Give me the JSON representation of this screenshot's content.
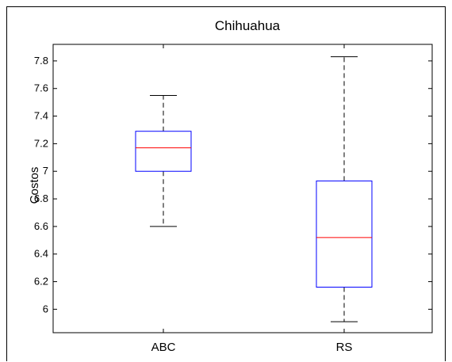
{
  "chart_data": {
    "type": "box",
    "title": "Chihuahua",
    "xlabel": "",
    "ylabel": "Costos",
    "ylim": [
      5.83,
      7.92
    ],
    "yticks": [
      6,
      6.2,
      6.4,
      6.6,
      6.8,
      7,
      7.2,
      7.4,
      7.6,
      7.8
    ],
    "ytick_labels": [
      "6",
      "6.2",
      "6.4",
      "6.6",
      "6.8",
      "7",
      "7.2",
      "7.4",
      "7.6",
      "7.8"
    ],
    "categories": [
      "ABC",
      "RS"
    ],
    "boxes": [
      {
        "category": "ABC",
        "whisker_low": 6.6,
        "q1": 7.0,
        "median": 7.17,
        "q3": 7.29,
        "whisker_high": 7.55
      },
      {
        "category": "RS",
        "whisker_low": 5.91,
        "q1": 6.16,
        "median": 6.52,
        "q3": 6.93,
        "whisker_high": 7.83
      }
    ],
    "grid": false,
    "legend": "none",
    "colors": {
      "box": "#0000ff",
      "median": "#ff0000",
      "whisker": "#000000"
    }
  }
}
